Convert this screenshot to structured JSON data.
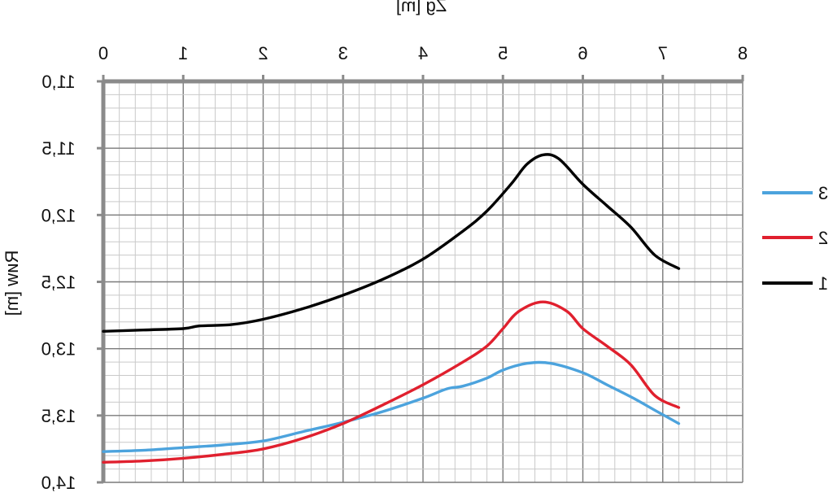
{
  "chart_data": {
    "type": "line",
    "xlabel": "Zg  [m]",
    "ylabel": "Rиw  [m]",
    "xlim": [
      0,
      8
    ],
    "ylim": [
      11.0,
      14.0
    ],
    "x_ticks": [
      "0",
      "1",
      "2",
      "3",
      "4",
      "5",
      "6",
      "7",
      "8"
    ],
    "y_ticks": [
      {
        "value": 11.0,
        "label": "11,0"
      },
      {
        "value": 11.5,
        "label": "11,5"
      },
      {
        "value": 12.0,
        "label": "12,0"
      },
      {
        "value": 12.5,
        "label": "12,5"
      },
      {
        "value": 13.0,
        "label": "13,0"
      },
      {
        "value": 13.5,
        "label": "13,5"
      },
      {
        "value": 14.0,
        "label": "14,0"
      }
    ],
    "grid": true,
    "legend_position": "right",
    "series": [
      {
        "name": "1",
        "color": "#000000",
        "x": [
          0.0,
          0.5,
          1.0,
          1.2,
          1.6,
          2.0,
          2.5,
          3.0,
          3.5,
          4.0,
          4.5,
          4.8,
          5.1,
          5.3,
          5.5,
          5.7,
          6.0,
          6.3,
          6.6,
          6.9,
          7.2
        ],
        "y": [
          12.87,
          12.86,
          12.85,
          12.83,
          12.82,
          12.78,
          12.7,
          12.6,
          12.48,
          12.33,
          12.12,
          11.97,
          11.77,
          11.62,
          11.55,
          11.58,
          11.77,
          11.93,
          12.09,
          12.3,
          12.4
        ]
      },
      {
        "name": "2",
        "color": "#e0202e",
        "x": [
          0.0,
          0.5,
          1.0,
          1.5,
          2.0,
          2.5,
          3.0,
          3.5,
          4.0,
          4.5,
          4.8,
          5.0,
          5.2,
          5.5,
          5.8,
          6.0,
          6.3,
          6.6,
          6.9,
          7.2
        ],
        "y": [
          13.85,
          13.84,
          13.82,
          13.79,
          13.75,
          13.67,
          13.56,
          13.42,
          13.27,
          13.1,
          12.98,
          12.85,
          12.72,
          12.65,
          12.72,
          12.85,
          12.98,
          13.12,
          13.35,
          13.44
        ]
      },
      {
        "name": "3",
        "color": "#4ca3dd",
        "x": [
          0.0,
          0.5,
          1.0,
          1.5,
          2.0,
          2.5,
          3.0,
          3.5,
          4.0,
          4.3,
          4.5,
          4.8,
          5.0,
          5.3,
          5.6,
          6.0,
          6.3,
          6.6,
          6.9,
          7.2
        ],
        "y": [
          13.77,
          13.76,
          13.74,
          13.72,
          13.69,
          13.62,
          13.55,
          13.47,
          13.37,
          13.3,
          13.28,
          13.22,
          13.16,
          13.11,
          13.11,
          13.18,
          13.27,
          13.36,
          13.46,
          13.56
        ]
      }
    ]
  }
}
